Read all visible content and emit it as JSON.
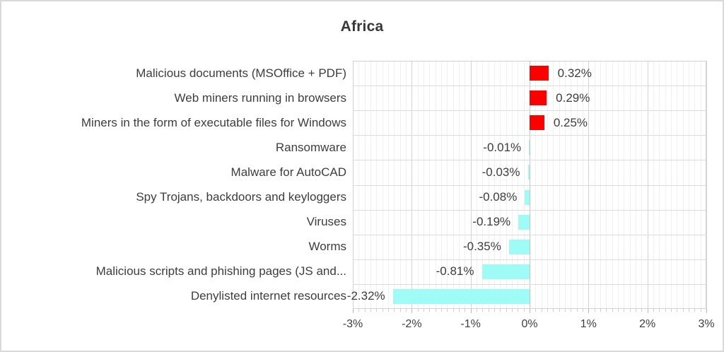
{
  "title": "Africa",
  "chart_data": {
    "type": "bar",
    "orientation": "horizontal",
    "title": "Africa",
    "categories": [
      "Malicious documents (MSOffice + PDF)",
      "Web miners running in browsers",
      "Miners in the form of executable files for Windows",
      "Ransomware",
      "Malware for AutoCAD",
      "Spy Trojans, backdoors and keyloggers",
      "Viruses",
      "Worms",
      "Malicious scripts and phishing pages (JS and...",
      "Denylisted internet resources"
    ],
    "values": [
      0.32,
      0.29,
      0.25,
      -0.01,
      -0.03,
      -0.08,
      -0.19,
      -0.35,
      -0.81,
      -2.32
    ],
    "value_labels": [
      "0.32%",
      "0.29%",
      "0.25%",
      "-0.01%",
      "-0.03%",
      "-0.08%",
      "-0.19%",
      "-0.35%",
      "-0.81%",
      "-2.32%"
    ],
    "xlim": [
      -3,
      3
    ],
    "x_major_unit": 1,
    "x_minor_unit": 0.1,
    "x_tick_labels": [
      "-3%",
      "-2%",
      "-1%",
      "0%",
      "1%",
      "2%",
      "3%"
    ],
    "xlabel": "",
    "ylabel": "",
    "legend": "none",
    "grid": "vertical major and minor gridlines, horizontal category separators",
    "colors": {
      "positive_bar": "#fb0000",
      "negative_bar": "#9efbf6",
      "text": "#3d3d3d",
      "grid_major": "#d4d4d4",
      "grid_minor": "#f0f0f0",
      "grid_row": "#dcdcdc",
      "zero_line": "#c4c4c4",
      "frame_border": "#d9d9d9"
    }
  }
}
